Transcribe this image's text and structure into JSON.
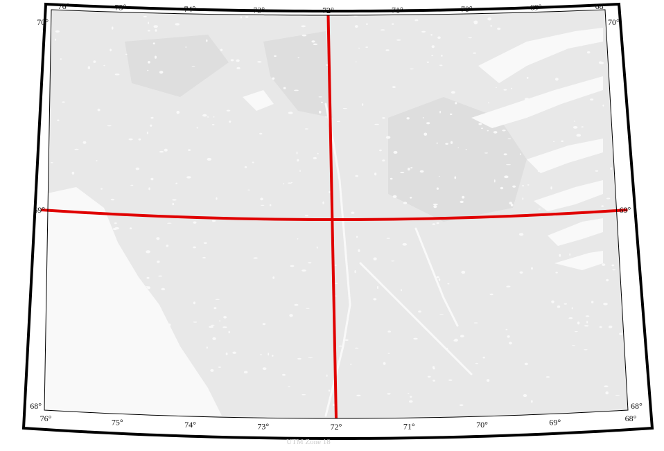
{
  "map": {
    "colors": {
      "background": "#ffffff",
      "land": "#e8e8e8",
      "land_darker": "#dedede",
      "water": "#f9f9f9",
      "frame": "#000000",
      "graticule": "#e00000"
    },
    "latitudes": [
      {
        "value": 70,
        "label": "70°"
      },
      {
        "value": 69,
        "label": "69°"
      },
      {
        "value": 68,
        "label": "68°"
      }
    ],
    "longitudes": [
      {
        "value": 76,
        "label": "76°"
      },
      {
        "value": 75,
        "label": "75°"
      },
      {
        "value": 74,
        "label": "74°"
      },
      {
        "value": 73,
        "label": "73°"
      },
      {
        "value": 72,
        "label": "72°"
      },
      {
        "value": 71,
        "label": "71°"
      },
      {
        "value": 70,
        "label": "70°"
      },
      {
        "value": 69,
        "label": "69°"
      },
      {
        "value": 68,
        "label": "68°"
      }
    ],
    "highlight": {
      "latitude": 69,
      "longitude": 72
    },
    "footer": "UTM Zone 18"
  }
}
